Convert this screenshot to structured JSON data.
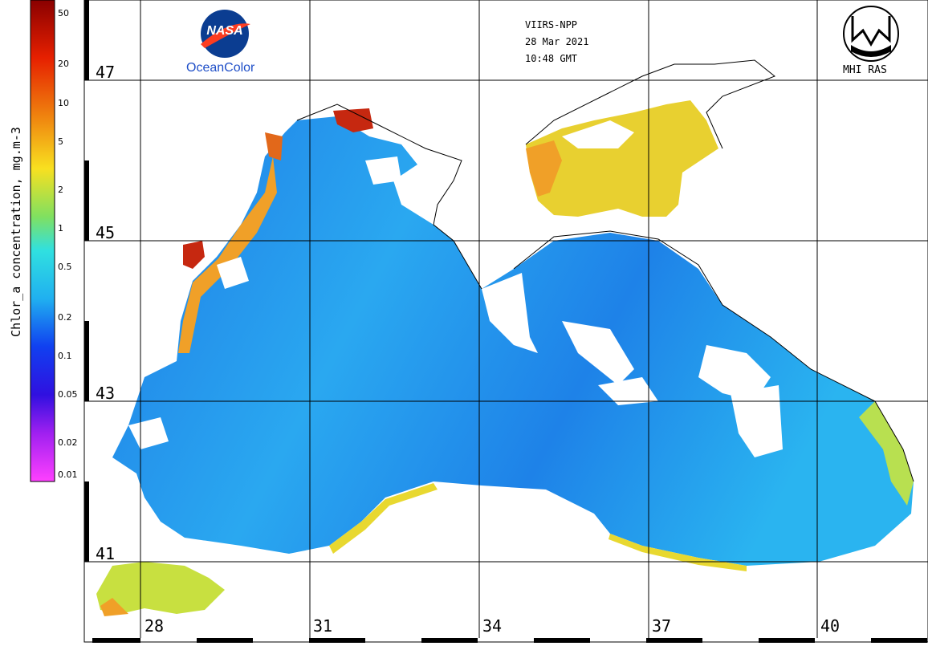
{
  "header": {
    "satellite": "VIIRS-NPP",
    "date": "28 Mar 2021",
    "time": "10:48 GMT"
  },
  "logos": {
    "nasa": "NASA",
    "oceancolor": "OceanColor",
    "mhi": "MHI RAS"
  },
  "colorbar": {
    "title": "Chlor_a concentration, mg.m-3",
    "ticks": [
      "50",
      "20",
      "10",
      "5",
      "2",
      "1",
      "0.5",
      "0.2",
      "0.1",
      "0.05",
      "0.02",
      "0.01"
    ]
  },
  "grid": {
    "latitudes": [
      "47",
      "45",
      "43",
      "41"
    ],
    "longitudes": [
      "28",
      "31",
      "34",
      "37",
      "40"
    ]
  },
  "colors": {
    "high": "#c62810",
    "medium": "#f0a028",
    "moderate": "#f0e040",
    "low": "#2aa0f0",
    "very_low": "#1e78e0",
    "land": "#ffffff"
  }
}
